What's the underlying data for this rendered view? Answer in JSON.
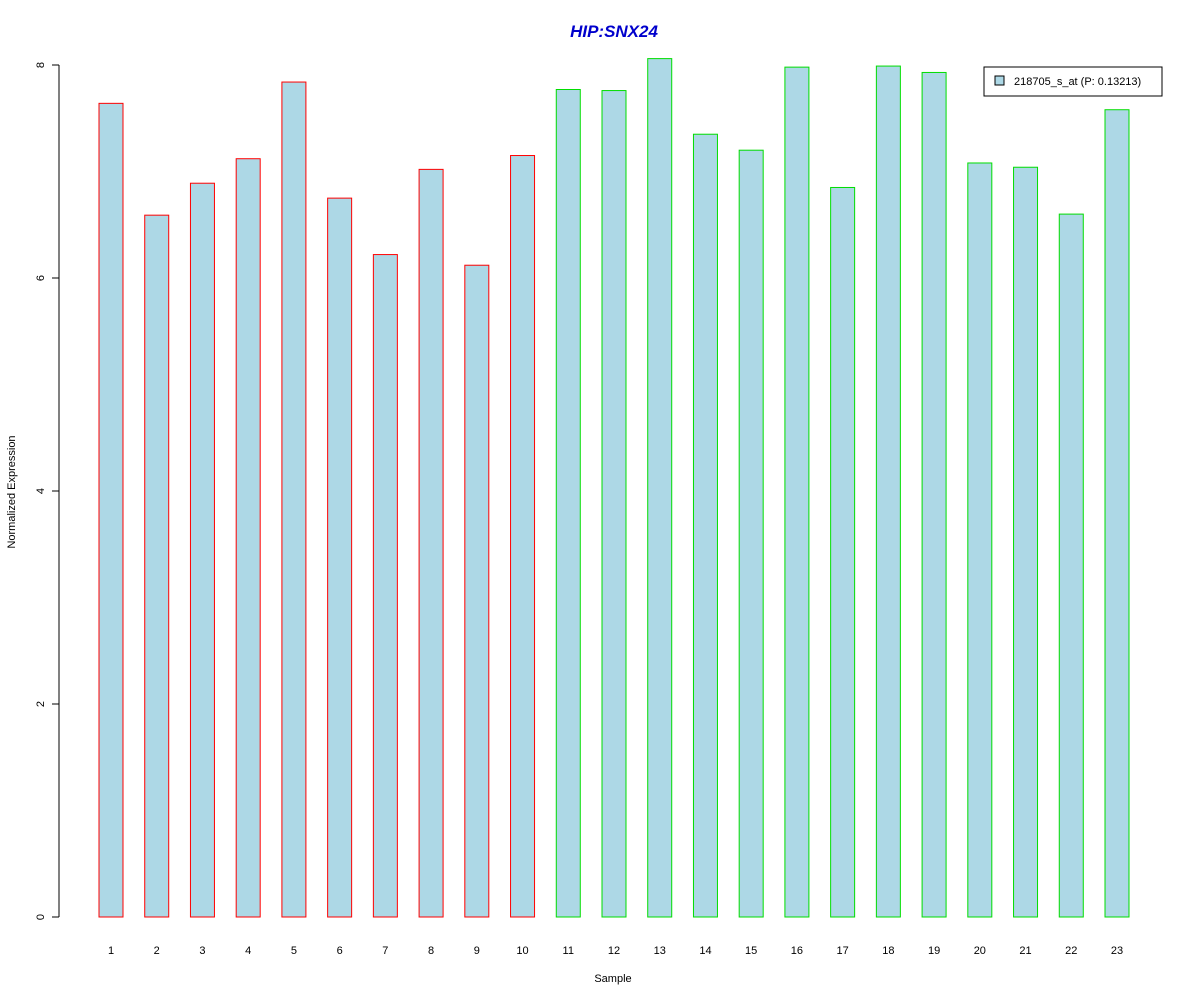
{
  "chart_data": {
    "type": "bar",
    "title": "HIP:SNX24",
    "xlabel": "Sample",
    "ylabel": "Normalized Expression",
    "categories": [
      "1",
      "2",
      "3",
      "4",
      "5",
      "6",
      "7",
      "8",
      "9",
      "10",
      "11",
      "12",
      "13",
      "14",
      "15",
      "16",
      "17",
      "18",
      "19",
      "20",
      "21",
      "22",
      "23"
    ],
    "values": [
      7.64,
      6.59,
      6.89,
      7.12,
      7.84,
      6.75,
      6.22,
      7.02,
      6.12,
      7.15,
      7.77,
      7.76,
      8.06,
      7.35,
      7.2,
      7.98,
      6.85,
      7.99,
      7.93,
      7.08,
      7.04,
      6.6,
      7.58
    ],
    "group": [
      "red",
      "red",
      "red",
      "red",
      "red",
      "red",
      "red",
      "red",
      "red",
      "red",
      "green",
      "green",
      "green",
      "green",
      "green",
      "green",
      "green",
      "green",
      "green",
      "green",
      "green",
      "green",
      "green"
    ],
    "ylim": [
      0,
      8
    ],
    "yticks": [
      0,
      2,
      4,
      6,
      8
    ],
    "grid": false,
    "legend": {
      "position": "top-right",
      "entries": [
        {
          "label": "218705_s_at (P: 0.13213)",
          "fill": "#add8e6"
        }
      ]
    },
    "colors": {
      "fill": "#add8e6",
      "red": "#ff0000",
      "green": "#00dd00",
      "title": "#0000cc"
    }
  }
}
